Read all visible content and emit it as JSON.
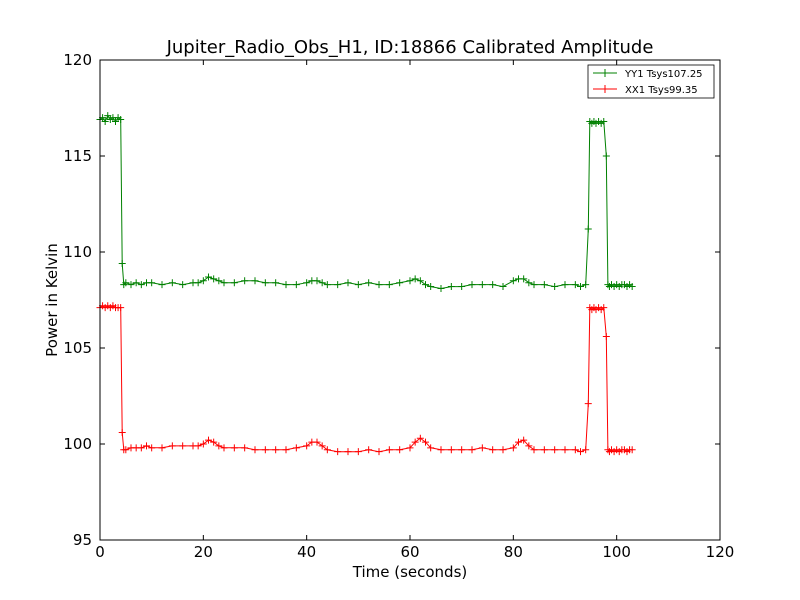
{
  "chart_data": {
    "type": "line",
    "title": "Jupiter_Radio_Obs_H1, ID:18866 Calibrated Amplitude",
    "xlabel": "Time (seconds)",
    "ylabel": "Power in Kelvin",
    "xlim": [
      0,
      120
    ],
    "ylim": [
      95,
      120
    ],
    "xticks": [
      "0",
      "20",
      "40",
      "60",
      "80",
      "100",
      "120"
    ],
    "yticks": [
      "95",
      "100",
      "105",
      "110",
      "115",
      "120"
    ],
    "grid": false,
    "legend_position": "top-right",
    "series": [
      {
        "name": "YY1 Tsys107.25",
        "color": "#008000",
        "x": [
          0.0,
          0.5,
          1.0,
          1.5,
          2.0,
          2.5,
          3.0,
          3.5,
          4.0,
          4.3,
          4.6,
          5,
          6,
          7,
          8,
          9,
          10,
          12,
          14,
          16,
          18,
          19,
          20,
          21,
          22,
          23,
          24,
          26,
          28,
          30,
          32,
          34,
          36,
          38,
          40,
          41,
          42,
          43,
          44,
          46,
          48,
          50,
          52,
          54,
          56,
          58,
          60,
          61,
          62,
          63,
          64,
          66,
          68,
          70,
          72,
          74,
          76,
          78,
          80,
          81,
          82,
          83,
          84,
          86,
          88,
          90,
          92,
          93,
          94,
          94.5,
          94.8,
          95.2,
          95.6,
          96,
          96.5,
          97,
          97.5,
          98,
          98.3,
          98.6,
          99,
          99.5,
          100,
          100.5,
          101,
          101.5,
          102,
          102.5,
          103
        ],
        "y": [
          116.9,
          117.0,
          116.8,
          117.1,
          116.9,
          117.0,
          116.8,
          117.0,
          116.9,
          109.4,
          108.3,
          108.4,
          108.3,
          108.4,
          108.3,
          108.4,
          108.4,
          108.3,
          108.4,
          108.3,
          108.4,
          108.4,
          108.5,
          108.7,
          108.6,
          108.5,
          108.4,
          108.4,
          108.5,
          108.5,
          108.4,
          108.4,
          108.3,
          108.3,
          108.4,
          108.5,
          108.5,
          108.4,
          108.3,
          108.3,
          108.4,
          108.3,
          108.4,
          108.3,
          108.3,
          108.4,
          108.5,
          108.6,
          108.5,
          108.3,
          108.2,
          108.1,
          108.2,
          108.2,
          108.3,
          108.3,
          108.3,
          108.2,
          108.5,
          108.6,
          108.6,
          108.4,
          108.3,
          108.3,
          108.2,
          108.3,
          108.3,
          108.2,
          108.3,
          111.2,
          116.8,
          116.7,
          116.8,
          116.7,
          116.8,
          116.7,
          116.8,
          115.0,
          108.3,
          108.2,
          108.3,
          108.2,
          108.3,
          108.2,
          108.3,
          108.3,
          108.2,
          108.3,
          108.2
        ]
      },
      {
        "name": "XX1 Tsys99.35",
        "color": "#ff0000",
        "x": [
          0.0,
          0.5,
          1.0,
          1.5,
          2.0,
          2.5,
          3.0,
          3.5,
          4.0,
          4.3,
          4.6,
          5,
          6,
          7,
          8,
          9,
          10,
          12,
          14,
          16,
          18,
          19,
          20,
          21,
          22,
          23,
          24,
          26,
          28,
          30,
          32,
          34,
          36,
          38,
          40,
          41,
          42,
          43,
          44,
          46,
          48,
          50,
          52,
          54,
          56,
          58,
          60,
          61,
          62,
          63,
          64,
          66,
          68,
          70,
          72,
          74,
          76,
          78,
          80,
          81,
          82,
          83,
          84,
          86,
          88,
          90,
          92,
          93,
          94,
          94.5,
          94.8,
          95.2,
          95.6,
          96,
          96.5,
          97,
          97.5,
          98,
          98.3,
          98.6,
          99,
          99.5,
          100,
          100.5,
          101,
          101.5,
          102,
          102.5,
          103
        ],
        "y": [
          107.1,
          107.2,
          107.1,
          107.2,
          107.1,
          107.2,
          107.1,
          107.1,
          107.1,
          100.6,
          99.7,
          99.7,
          99.8,
          99.8,
          99.8,
          99.9,
          99.8,
          99.8,
          99.9,
          99.9,
          99.9,
          99.9,
          100.0,
          100.2,
          100.1,
          99.9,
          99.8,
          99.8,
          99.8,
          99.7,
          99.7,
          99.7,
          99.7,
          99.8,
          99.9,
          100.1,
          100.1,
          99.9,
          99.7,
          99.6,
          99.6,
          99.6,
          99.7,
          99.6,
          99.7,
          99.7,
          99.8,
          100.1,
          100.3,
          100.1,
          99.8,
          99.7,
          99.7,
          99.7,
          99.7,
          99.8,
          99.7,
          99.7,
          99.8,
          100.1,
          100.2,
          99.9,
          99.7,
          99.7,
          99.7,
          99.7,
          99.7,
          99.6,
          99.7,
          102.1,
          107.1,
          107.0,
          107.1,
          107.0,
          107.1,
          107.0,
          107.1,
          105.6,
          99.7,
          99.6,
          99.7,
          99.6,
          99.7,
          99.6,
          99.7,
          99.7,
          99.6,
          99.7,
          99.7
        ]
      }
    ]
  }
}
